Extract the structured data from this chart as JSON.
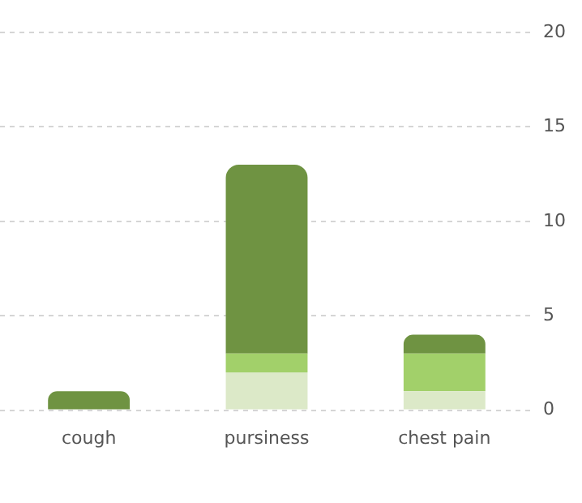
{
  "chart_data": {
    "type": "bar",
    "stacked": true,
    "categories": [
      "cough",
      "pursiness",
      "chest pain"
    ],
    "series": [
      {
        "color": "#dce9c8",
        "values": [
          0,
          2,
          1
        ]
      },
      {
        "color": "#a2d06a",
        "values": [
          0,
          1,
          2
        ]
      },
      {
        "color": "#6f9342",
        "values": [
          1,
          10,
          1
        ]
      }
    ],
    "ylim": [
      0,
      20
    ],
    "yticks": [
      0,
      5,
      10,
      15,
      20
    ],
    "grid": "y",
    "legend": false
  }
}
